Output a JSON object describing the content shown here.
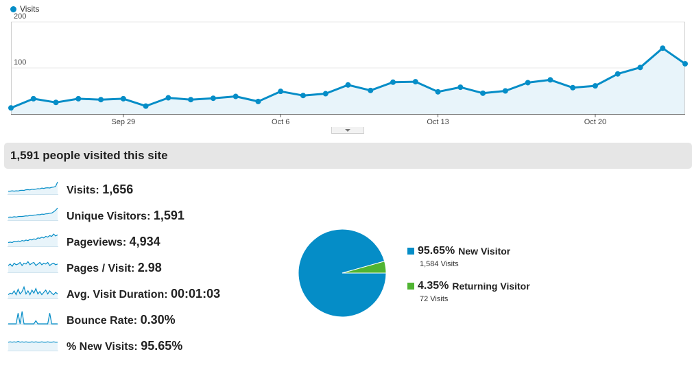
{
  "legend": {
    "label": "Visits",
    "color": "#058dc7"
  },
  "chart_data": {
    "type": "area",
    "title": "",
    "xlabel": "",
    "ylabel": "",
    "series": [
      {
        "name": "Visits",
        "values": [
          13,
          33,
          25,
          33,
          31,
          33,
          17,
          35,
          31,
          34,
          38,
          27,
          49,
          40,
          44,
          63,
          51,
          69,
          70,
          48,
          58,
          45,
          50,
          68,
          74,
          57,
          61,
          87,
          101,
          143,
          109
        ]
      }
    ],
    "x_tick_labels": [
      "Sep 29",
      "Oct 6",
      "Oct 13",
      "Oct 20"
    ],
    "x_tick_indices": [
      5,
      12,
      19,
      26
    ],
    "y_ticks": [
      100,
      200
    ],
    "ylim": [
      0,
      200
    ],
    "grid": true,
    "color": "#058dc7",
    "fill": "#e8f4fa"
  },
  "summary": {
    "title": "1,591 people visited this site"
  },
  "metrics": [
    {
      "label": "Visits:",
      "value": "1,656",
      "spark": [
        3,
        3,
        3.5,
        3,
        3.5,
        3.2,
        4,
        4.2,
        4,
        4.8,
        5,
        4.6,
        5.5,
        5.2,
        5.6,
        6.2,
        6,
        7,
        6.6,
        7.2,
        7.4,
        7.1,
        8,
        8.3,
        9.2,
        15
      ]
    },
    {
      "label": "Unique Visitors:",
      "value": "1,591",
      "spark": [
        3,
        3.2,
        3,
        3.6,
        3.2,
        3.8,
        4,
        4,
        4.4,
        4.8,
        4.6,
        5.4,
        5.2,
        5.8,
        6,
        6.4,
        6.2,
        7,
        6.8,
        7.4,
        7.6,
        8.2,
        8.4,
        10,
        12,
        15
      ]
    },
    {
      "label": "Pageviews:",
      "value": "4,934",
      "spark": [
        4,
        4.5,
        4,
        5.5,
        5,
        6,
        5.4,
        6.6,
        6,
        7.2,
        6.5,
        8,
        7.4,
        8.8,
        8,
        10,
        9.4,
        11,
        10,
        12,
        11,
        13,
        12,
        15,
        12.5,
        14
      ]
    },
    {
      "label": "Pages / Visit:",
      "value": "2.98",
      "spark": [
        8,
        10,
        7,
        11,
        9,
        10,
        12,
        8,
        11,
        10,
        13,
        9,
        11,
        12,
        8,
        10,
        12,
        9,
        11,
        10,
        12,
        8,
        10,
        11,
        9,
        10
      ]
    },
    {
      "label": "Avg. Visit Duration:",
      "value": "00:01:03",
      "spark": [
        4,
        6,
        5,
        9,
        4,
        11,
        5,
        8,
        14,
        5,
        9,
        4,
        10,
        6,
        12,
        5,
        8,
        4,
        7,
        10,
        5,
        9,
        6,
        4,
        7,
        5
      ]
    },
    {
      "label": "Bounce Rate:",
      "value": "0.30%",
      "spark": [
        0,
        0,
        0,
        0,
        0,
        14,
        0,
        16,
        0,
        0,
        0,
        0,
        0,
        0,
        4,
        0,
        0,
        0,
        0,
        0,
        0,
        14,
        0,
        0,
        0,
        0
      ]
    },
    {
      "label": "% New Visits:",
      "value": "95.65%",
      "spark": [
        10,
        10.5,
        10,
        10.5,
        10,
        11,
        10,
        10.5,
        10,
        10.5,
        10,
        10,
        10.5,
        10,
        10.5,
        10,
        10,
        10.5,
        10,
        10,
        10.5,
        10,
        10,
        10.5,
        10,
        10
      ]
    }
  ],
  "pie": {
    "slices": [
      {
        "label": "New Visitor",
        "percent": "95.65%",
        "value": 95.65,
        "visits": "1,584 Visits",
        "color": "#058dc7"
      },
      {
        "label": "Returning Visitor",
        "percent": "4.35%",
        "value": 4.35,
        "visits": "72 Visits",
        "color": "#50b432"
      }
    ]
  }
}
